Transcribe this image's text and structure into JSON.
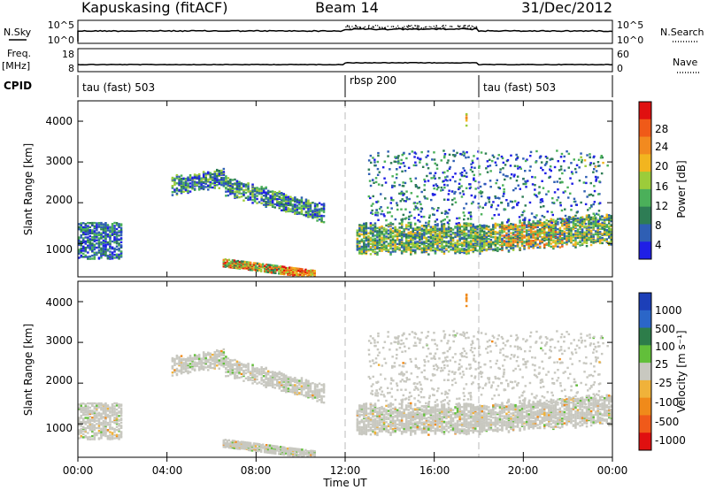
{
  "header": {
    "station": "Kapuskasing (fitACF)",
    "beam": "Beam 14",
    "date": "31/Dec/2012"
  },
  "left_labels": {
    "nsky": "N.Sky",
    "freq": "Freq.",
    "freq_unit": "[MHz]",
    "cpid": "CPID"
  },
  "right_labels": {
    "nsearch": "N.Search",
    "nave": "Nave"
  },
  "noise_axis": {
    "left_ticks": [
      "10^5",
      "10^0"
    ],
    "right_ticks": [
      "10^5",
      "10^0"
    ]
  },
  "freq_axis": {
    "left_ticks": [
      "18",
      "8"
    ],
    "right_ticks": [
      "60",
      "0"
    ]
  },
  "cpid_segments": [
    {
      "label": "tau (fast) 503",
      "start_hour": 0
    },
    {
      "label": "rbsp 200",
      "start_hour": 12
    },
    {
      "label": "tau (fast) 503",
      "start_hour": 18
    }
  ],
  "x_axis": {
    "label": "Time UT",
    "ticks": [
      "00:00",
      "04:00",
      "08:00",
      "12:00",
      "16:00",
      "20:00",
      "00:00"
    ],
    "range_hours": [
      0,
      24
    ]
  },
  "power_panel": {
    "ylabel": "Slant Range [km]",
    "yticks": [
      "1000",
      "2000",
      "3000",
      "4000"
    ],
    "colorbar_label": "Power [dB]",
    "colorbar_ticks": [
      "28",
      "24",
      "20",
      "16",
      "12",
      "8",
      "4"
    ]
  },
  "velocity_panel": {
    "ylabel": "Slant Range [km]",
    "yticks": [
      "1000",
      "2000",
      "3000",
      "4000"
    ],
    "colorbar_label": "Velocity [m s⁻¹]",
    "colorbar_ticks": [
      "1000",
      "500",
      "100",
      "25",
      "-25",
      "-100",
      "-500",
      "-1000"
    ]
  },
  "colors": {
    "power_scale": [
      "#1f1fe6",
      "#2f5fb4",
      "#2e7d55",
      "#4bb05a",
      "#9ccc3a",
      "#f2b51f",
      "#f28a1f",
      "#f05a18",
      "#e01010"
    ],
    "velocity_scale": [
      "#1c3fb8",
      "#2b66c8",
      "#2d7d4a",
      "#62bf3a",
      "#c8c8c0",
      "#f0b23a",
      "#f08a1a",
      "#f05a1a",
      "#e01010"
    ],
    "echo_gray": "#c8c8c0"
  },
  "chart_data": {
    "type": "heatmap",
    "title": "Kapuskasing (fitACF) Beam 14 31/Dec/2012",
    "xlabel": "Time UT",
    "ylabel": "Slant Range [km]",
    "xlim": [
      0,
      24
    ],
    "ylim": [
      180,
      4500
    ],
    "grid": false,
    "mode_change_hours": [
      12,
      18
    ],
    "echo_regions": [
      {
        "name": "early near-range patch",
        "hours": [
          0.0,
          2.0
        ],
        "range_km": [
          700,
          1500
        ],
        "power_db": [
          4,
          20
        ],
        "velocity": "low"
      },
      {
        "name": "far slanted band",
        "hours": [
          4.2,
          11.0
        ],
        "range_km": [
          1600,
          2800
        ],
        "power_db": [
          4,
          16
        ],
        "velocity": "low"
      },
      {
        "name": "near-range streak",
        "hours": [
          6.5,
          10.5
        ],
        "range_km": [
          250,
          650
        ],
        "power_db": [
          12,
          28
        ],
        "velocity": "low"
      },
      {
        "name": "afternoon band",
        "hours": [
          12.5,
          24.0
        ],
        "range_km": [
          700,
          1500
        ],
        "power_db": [
          4,
          24
        ],
        "velocity": "low"
      },
      {
        "name": "scattered evening echoes",
        "hours": [
          13.0,
          23.5
        ],
        "range_km": [
          1500,
          3300
        ],
        "power_db": [
          4,
          16
        ],
        "velocity": "mixed"
      }
    ]
  }
}
